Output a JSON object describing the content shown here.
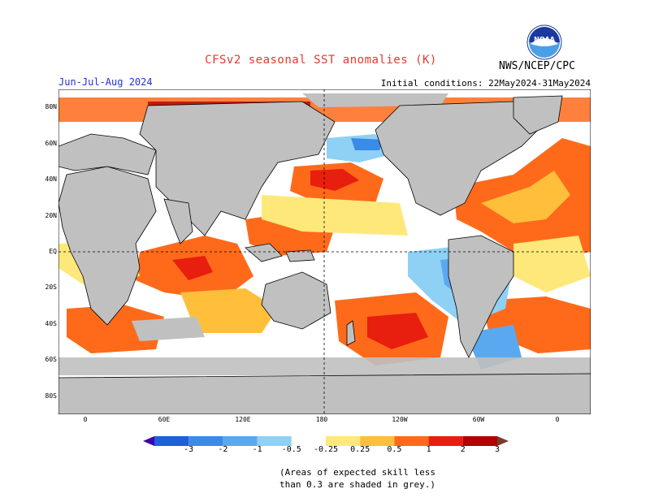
{
  "header": {
    "title": "CFSv2 seasonal SST anomalies (K)",
    "period": "Jun-Jul-Aug 2024",
    "initial_conditions": "Initial conditions: 22May2024-31May2024",
    "organization": "NWS/NCEP/CPC",
    "logo_text": "NOAA"
  },
  "map": {
    "projection": "equirectangular",
    "lon_range": [
      0,
      360
    ],
    "lat_range": [
      -90,
      90
    ],
    "lat_labels": [
      "80N",
      "60N",
      "40N",
      "20N",
      "EQ",
      "20S",
      "40S",
      "60S",
      "80S"
    ],
    "lon_labels": [
      "0",
      "60E",
      "120E",
      "180",
      "120W",
      "60W",
      "0"
    ],
    "land_color": "#c0c0c0",
    "gridlines": "dashed at EQ and 180"
  },
  "colorbar": {
    "tick_labels": [
      "-3",
      "-2",
      "-1",
      "-0.5",
      "-0.25",
      "0.25",
      "0.5",
      "1",
      "2",
      "3"
    ],
    "colors": [
      "#3b00b0",
      "#1f5fd8",
      "#3a8be8",
      "#5aa9f0",
      "#8fd0f5",
      "#ffffff",
      "#ffe87a",
      "#ffbf3a",
      "#ff6a1a",
      "#e81e0e",
      "#b30000",
      "#7a3a2a"
    ]
  },
  "footnote": {
    "line1": "(Areas of expected skill less",
    "line2": "than 0.3 are shaded in grey.)"
  }
}
